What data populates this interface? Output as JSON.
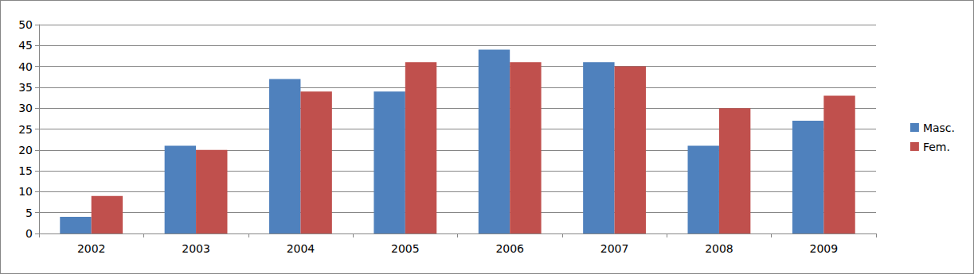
{
  "chart_data": {
    "type": "bar",
    "categories": [
      "2002",
      "2003",
      "2004",
      "2005",
      "2006",
      "2007",
      "2008",
      "2009"
    ],
    "series": [
      {
        "name": "Masc.",
        "color": "#4f81bd",
        "values": [
          4,
          21,
          37,
          34,
          44,
          41,
          21,
          27
        ]
      },
      {
        "name": "Fem.",
        "color": "#c0504d",
        "values": [
          9,
          20,
          34,
          41,
          41,
          40,
          30,
          33
        ]
      }
    ],
    "ylim": [
      0,
      50
    ],
    "yticks": [
      0,
      5,
      10,
      15,
      20,
      25,
      30,
      35,
      40,
      45,
      50
    ],
    "grid": true,
    "legend": "right"
  }
}
